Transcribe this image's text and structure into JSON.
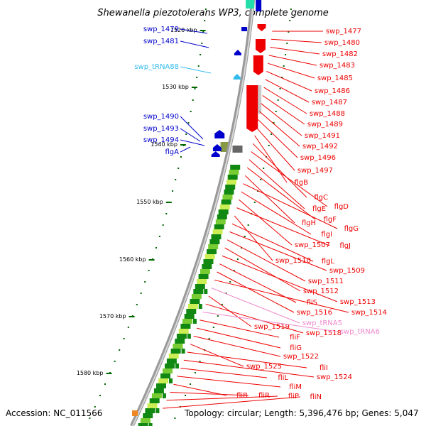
{
  "title": "Shewanella piezotolerans WP3, complete genome",
  "accession": "Accession: NC_011566",
  "topology": "Topology: circular; Length: 5,396,476 bp; Genes: 5,047",
  "scale_labels": [
    "1520 kbp",
    "1530 kbp",
    "1540 kbp",
    "1550 kbp",
    "1560 kbp",
    "1570 kbp",
    "1580 kbp"
  ],
  "colors": {
    "forward_gene": "#0000cc",
    "reverse_gene": "#ee0000",
    "trna_forward": "#33bbee",
    "trna_reverse": "#ee88cc",
    "backbone": "#999999",
    "tick": "#006600",
    "conservation_high": "#118811",
    "conservation_mid": "#77cc33",
    "conservation_low": "#ccee55"
  },
  "left_labels": [
    {
      "text": "swp_1479",
      "color": "#0000cc"
    },
    {
      "text": "swp_1481",
      "color": "#0000cc"
    },
    {
      "text": "swp_tRNA88",
      "color": "#33bbee"
    },
    {
      "text": "swp_1490",
      "color": "#0000cc"
    },
    {
      "text": "swp_1493",
      "color": "#0000cc"
    },
    {
      "text": "swp_1494",
      "color": "#0000cc"
    },
    {
      "text": "flgA",
      "color": "#0000cc"
    }
  ],
  "right_labels": [
    {
      "text": "swp_1477",
      "color": "#ee0000"
    },
    {
      "text": "swp_1480",
      "color": "#ee0000"
    },
    {
      "text": "swp_1482",
      "color": "#ee0000"
    },
    {
      "text": "swp_1483",
      "color": "#ee0000"
    },
    {
      "text": "swp_1485",
      "color": "#ee0000"
    },
    {
      "text": "swp_1486",
      "color": "#ee0000"
    },
    {
      "text": "swp_1487",
      "color": "#ee0000"
    },
    {
      "text": "swp_1488",
      "color": "#ee0000"
    },
    {
      "text": "swp_1489",
      "color": "#ee0000"
    },
    {
      "text": "swp_1491",
      "color": "#ee0000"
    },
    {
      "text": "swp_1492",
      "color": "#ee0000"
    },
    {
      "text": "swp_1496",
      "color": "#ee0000"
    },
    {
      "text": "swp_1497",
      "color": "#ee0000"
    },
    {
      "text": "flgB",
      "color": "#ee0000"
    },
    {
      "text": "flgC",
      "color": "#ee0000"
    },
    {
      "text": "flgD",
      "color": "#ee0000"
    },
    {
      "text": "flgE",
      "color": "#ee0000"
    },
    {
      "text": "flgF",
      "color": "#ee0000"
    },
    {
      "text": "flgH",
      "color": "#ee0000"
    },
    {
      "text": "flgG",
      "color": "#ee0000"
    },
    {
      "text": "flgI",
      "color": "#ee0000"
    },
    {
      "text": "swp_1507",
      "color": "#ee0000"
    },
    {
      "text": "flgJ",
      "color": "#ee0000"
    },
    {
      "text": "swp_1510",
      "color": "#ee0000"
    },
    {
      "text": "flgL",
      "color": "#ee0000"
    },
    {
      "text": "swp_1509",
      "color": "#ee0000"
    },
    {
      "text": "swp_1511",
      "color": "#ee0000"
    },
    {
      "text": "swp_1512",
      "color": "#ee0000"
    },
    {
      "text": "swp_1513",
      "color": "#ee0000"
    },
    {
      "text": "fliS",
      "color": "#ee0000"
    },
    {
      "text": "swp_1516",
      "color": "#ee0000"
    },
    {
      "text": "swp_1514",
      "color": "#ee0000"
    },
    {
      "text": "swp_tRNA5",
      "color": "#ee88cc"
    },
    {
      "text": "swp_1519",
      "color": "#ee0000"
    },
    {
      "text": "swp_1518",
      "color": "#ee0000"
    },
    {
      "text": "swp_tRNA6",
      "color": "#ee88cc"
    },
    {
      "text": "fliF",
      "color": "#ee0000"
    },
    {
      "text": "fliG",
      "color": "#ee0000"
    },
    {
      "text": "swp_1522",
      "color": "#ee0000"
    },
    {
      "text": "swp_1525",
      "color": "#ee0000"
    },
    {
      "text": "fliI",
      "color": "#ee0000"
    },
    {
      "text": "swp_1524",
      "color": "#ee0000"
    },
    {
      "text": "fliL",
      "color": "#ee0000"
    },
    {
      "text": "fliM",
      "color": "#ee0000"
    },
    {
      "text": "fliB",
      "color": "#ee0000"
    },
    {
      "text": "fliR",
      "color": "#ee0000"
    },
    {
      "text": "fliP",
      "color": "#ee0000"
    },
    {
      "text": "fliN",
      "color": "#ee0000"
    }
  ]
}
